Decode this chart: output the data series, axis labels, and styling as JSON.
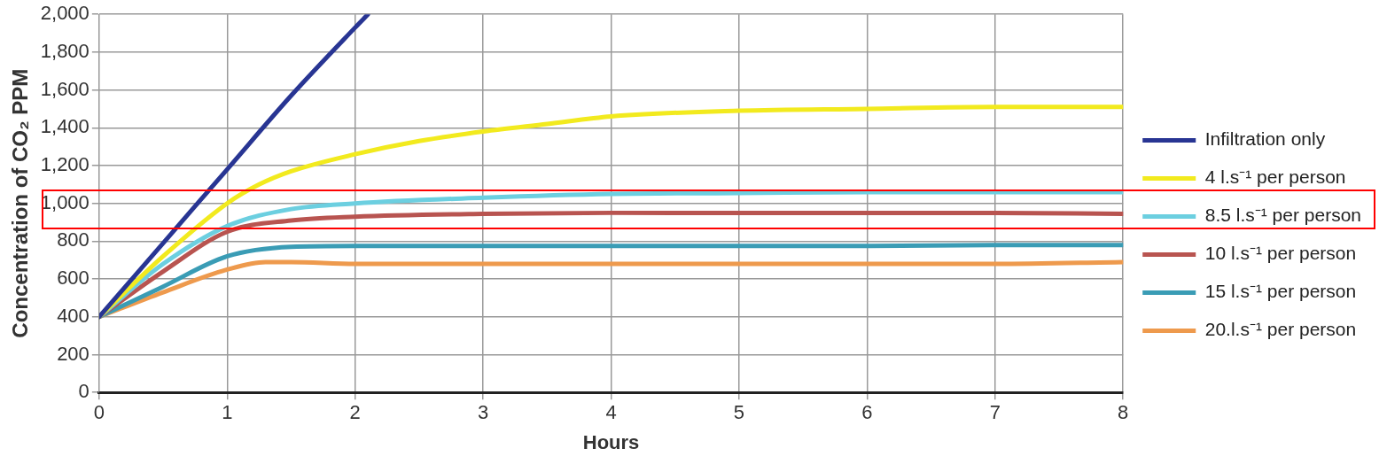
{
  "chart_data": {
    "type": "line",
    "xlabel": "Hours",
    "ylabel": "Concentration of CO₂ PPM",
    "xlim": [
      0,
      8
    ],
    "xticks": [
      0,
      1,
      2,
      3,
      4,
      5,
      6,
      7,
      8
    ],
    "ylim": [
      0,
      2000
    ],
    "yticks": [
      0,
      200,
      400,
      600,
      800,
      {
        "value": 1000,
        "label": "1,000"
      },
      {
        "value": 1200,
        "label": "1,200"
      },
      {
        "value": 1400,
        "label": "1,400"
      },
      {
        "value": 1600,
        "label": "1,600"
      },
      {
        "value": 1800,
        "label": "1,800"
      },
      {
        "value": 2000,
        "label": "2,000"
      }
    ],
    "grid": true,
    "legend": "right",
    "marker": "none",
    "line_style": "solid",
    "series": [
      {
        "name": "Infiltration only",
        "color": "#283593",
        "x": [
          0,
          0.5,
          1,
          1.5,
          2,
          2.1
        ],
        "values": [
          400,
          790,
          1180,
          1570,
          1930,
          2000
        ]
      },
      {
        "name": "4 l.s⁻¹ per person",
        "color": "#f2ea1e",
        "x": [
          0,
          0.5,
          1,
          1.25,
          1.5,
          2,
          2.5,
          3,
          3.5,
          4,
          5,
          6,
          7,
          8
        ],
        "values": [
          400,
          720,
          1000,
          1100,
          1170,
          1260,
          1330,
          1380,
          1420,
          1460,
          1490,
          1500,
          1510,
          1510
        ]
      },
      {
        "name": "8.5 l.s⁻¹ per person",
        "color": "#6ccfe0",
        "x": [
          0,
          0.5,
          1,
          1.5,
          2,
          3,
          4,
          5,
          6,
          7,
          8
        ],
        "values": [
          400,
          680,
          880,
          970,
          1000,
          1030,
          1050,
          1055,
          1060,
          1060,
          1060
        ]
      },
      {
        "name": "10 l.s⁻¹ per person",
        "color": "#b85450",
        "x": [
          0,
          0.5,
          1,
          1.5,
          2,
          3,
          4,
          5,
          6,
          7,
          8
        ],
        "values": [
          400,
          640,
          850,
          910,
          930,
          945,
          950,
          950,
          950,
          950,
          945
        ]
      },
      {
        "name": "15 l.s⁻¹ per person",
        "color": "#3a9cb5",
        "x": [
          0,
          0.5,
          1,
          1.5,
          2,
          3,
          4,
          5,
          6,
          7,
          8
        ],
        "values": [
          400,
          560,
          720,
          770,
          775,
          775,
          775,
          775,
          775,
          780,
          780
        ]
      },
      {
        "name": "20.l.s⁻¹ per person",
        "color": "#ee9a4d",
        "x": [
          0,
          0.5,
          1,
          1.3,
          1.5,
          2,
          3,
          4,
          5,
          6,
          7,
          8
        ],
        "values": [
          400,
          530,
          650,
          690,
          690,
          680,
          680,
          680,
          680,
          680,
          680,
          690
        ]
      }
    ]
  }
}
